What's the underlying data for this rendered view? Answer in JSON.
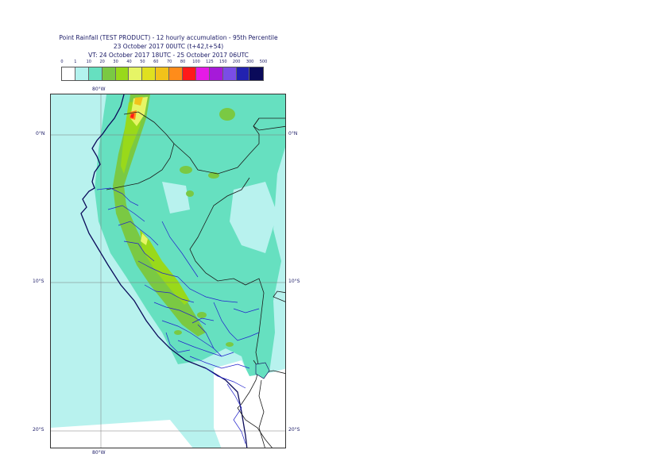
{
  "title": {
    "line1": "Point Rainfall (TEST PRODUCT) - 12 hourly accumulation - 95th Percentile",
    "line2": "23 October 2017 00UTC (t+42,t+54)",
    "line3": "VT: 24 October 2017 18UTC - 25 October 2017 06UTC"
  },
  "legend": {
    "thresholds": [
      "0",
      "1",
      "10",
      "20",
      "30",
      "40",
      "50",
      "60",
      "70",
      "80",
      "100",
      "125",
      "150",
      "200",
      "300",
      "500"
    ],
    "colors": [
      "#ffffff",
      "#b3f2ee",
      "#66e0c0",
      "#7ac943",
      "#99d91a",
      "#e6f566",
      "#e0e020",
      "#f2c21a",
      "#ff8c1a",
      "#ff1a1a",
      "#e61ae6",
      "#a61ad9",
      "#7a4de6",
      "#2222b0",
      "#0a0a5a"
    ]
  },
  "axes": {
    "top_lon": "80°W",
    "bottom_lon": "80°W",
    "lat_0": "0°N",
    "lat_10": "10°S",
    "lat_20": "20°S"
  }
}
